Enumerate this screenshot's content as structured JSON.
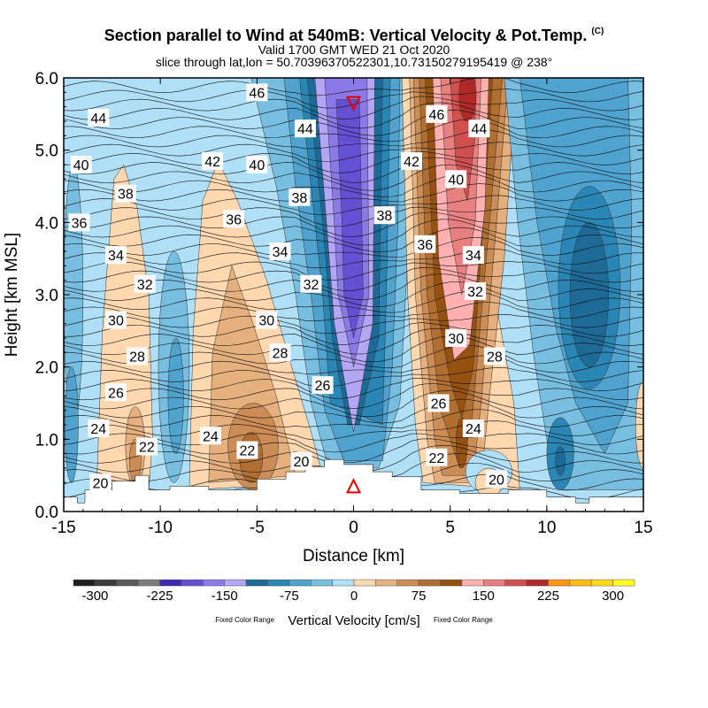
{
  "chart_data": {
    "type": "heatmap",
    "title": "Section parallel to Wind at 540mB: Vertical Velocity & Pot.Temp.",
    "copyright": "(C)",
    "subtitle1": "Valid 1700 GMT WED 21 Oct 2020",
    "subtitle2": "slice through lat,lon = 50.70396370522301,10.73150279195419 @ 238°",
    "xlabel": "Distance [km]",
    "ylabel": "Height [km MSL]",
    "xlim": [
      -15,
      15
    ],
    "ylim": [
      0,
      6
    ],
    "xticks": [
      "-15",
      "-10",
      "-5",
      "0",
      "5",
      "10",
      "15"
    ],
    "yticks": [
      "0.0",
      "1.0",
      "2.0",
      "3.0",
      "4.0",
      "5.0",
      "6.0"
    ],
    "colorbar": {
      "label": "Vertical Velocity [cm/s]",
      "note_left": "Fixed Color Range",
      "note_right": "Fixed Color Range",
      "tick_labels": [
        "-300",
        "-225",
        "-150",
        "-75",
        "0",
        "75",
        "150",
        "225",
        "300"
      ],
      "levels_step": 25,
      "colors": [
        "#1e1e1e",
        "#3c3c3c",
        "#5a5a5a",
        "#7d7d7d",
        "#3c28b4",
        "#6450d2",
        "#8c78e6",
        "#b4a5f5",
        "#1e6a96",
        "#2a86b4",
        "#4fa3ce",
        "#78bee0",
        "#b0e0f8",
        "#ffd8b0",
        "#e6b07e",
        "#cc8c55",
        "#b06e30",
        "#965010",
        "#ffb0b0",
        "#e88080",
        "#d05050",
        "#b02828",
        "#ff9614",
        "#ffbe14",
        "#ffdc14",
        "#ffff28"
      ]
    },
    "theta_labels": [
      {
        "v": "46",
        "x": -5,
        "h": 5.8
      },
      {
        "v": "44",
        "x": -13.2,
        "h": 5.45
      },
      {
        "v": "44",
        "x": -2.5,
        "h": 5.3
      },
      {
        "v": "42",
        "x": -7.3,
        "h": 4.85
      },
      {
        "v": "40",
        "x": -14.1,
        "h": 4.8
      },
      {
        "v": "40",
        "x": -5,
        "h": 4.8
      },
      {
        "v": "38",
        "x": -11.8,
        "h": 4.4
      },
      {
        "v": "38",
        "x": -2.8,
        "h": 4.35
      },
      {
        "v": "36",
        "x": -14.2,
        "h": 4.0
      },
      {
        "v": "36",
        "x": -6.2,
        "h": 4.05
      },
      {
        "v": "34",
        "x": -12.3,
        "h": 3.55
      },
      {
        "v": "34",
        "x": -3.8,
        "h": 3.6
      },
      {
        "v": "32",
        "x": -10.8,
        "h": 3.15
      },
      {
        "v": "32",
        "x": -2.2,
        "h": 3.15
      },
      {
        "v": "30",
        "x": -12.3,
        "h": 2.65
      },
      {
        "v": "30",
        "x": -4.5,
        "h": 2.65
      },
      {
        "v": "28",
        "x": -11.2,
        "h": 2.15
      },
      {
        "v": "28",
        "x": -3.8,
        "h": 2.2
      },
      {
        "v": "26",
        "x": -12.3,
        "h": 1.65
      },
      {
        "v": "26",
        "x": -1.6,
        "h": 1.75
      },
      {
        "v": "24",
        "x": -13.2,
        "h": 1.15
      },
      {
        "v": "24",
        "x": -7.4,
        "h": 1.05
      },
      {
        "v": "22",
        "x": -10.7,
        "h": 0.9
      },
      {
        "v": "22",
        "x": -5.5,
        "h": 0.85
      },
      {
        "v": "20",
        "x": -13.1,
        "h": 0.4
      },
      {
        "v": "20",
        "x": -2.7,
        "h": 0.7
      },
      {
        "v": "46",
        "x": 4.3,
        "h": 5.5
      },
      {
        "v": "44",
        "x": 6.5,
        "h": 5.3
      },
      {
        "v": "42",
        "x": 3.0,
        "h": 4.85
      },
      {
        "v": "40",
        "x": 5.3,
        "h": 4.6
      },
      {
        "v": "38",
        "x": 1.6,
        "h": 4.1
      },
      {
        "v": "36",
        "x": 3.7,
        "h": 3.7
      },
      {
        "v": "34",
        "x": 6.2,
        "h": 3.55
      },
      {
        "v": "32",
        "x": 6.3,
        "h": 3.05
      },
      {
        "v": "30",
        "x": 5.3,
        "h": 2.4
      },
      {
        "v": "28",
        "x": 7.3,
        "h": 2.15
      },
      {
        "v": "26",
        "x": 4.4,
        "h": 1.5
      },
      {
        "v": "24",
        "x": 6.2,
        "h": 1.15
      },
      {
        "v": "22",
        "x": 4.3,
        "h": 0.75
      },
      {
        "v": "20",
        "x": 7.4,
        "h": 0.45
      }
    ],
    "markers": [
      {
        "type": "triangle-down",
        "x": 0,
        "h": 5.65,
        "color": "#e00000"
      },
      {
        "type": "triangle-up",
        "x": 0,
        "h": 0.35,
        "color": "#e00000"
      }
    ]
  }
}
